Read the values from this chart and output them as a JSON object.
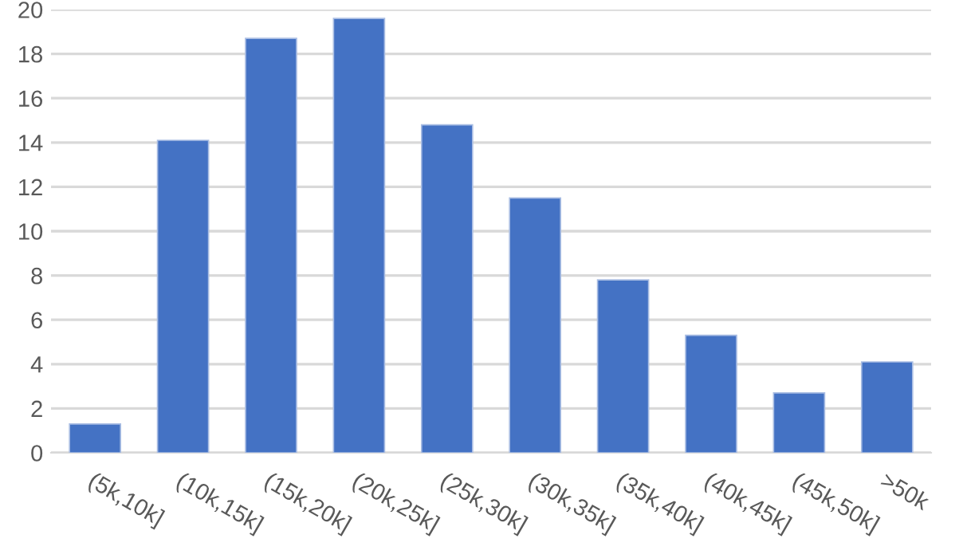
{
  "chart_data": {
    "type": "bar",
    "categories": [
      "(5k,10k]",
      "(10k,15k]",
      "(15k,20k]",
      "(20k,25k]",
      "(25k,30k]",
      "(30k,35k]",
      "(35k,40k]",
      "(40k,45k]",
      "(45k,50k]",
      ">50k"
    ],
    "values": [
      1.3,
      14.1,
      18.7,
      19.6,
      14.8,
      11.5,
      7.8,
      5.3,
      2.7,
      4.1
    ],
    "color": "#4472c4",
    "ylim": [
      0,
      20
    ],
    "yticks": [
      0,
      2,
      4,
      6,
      8,
      10,
      12,
      14,
      16,
      18,
      20
    ],
    "grid": "y"
  }
}
